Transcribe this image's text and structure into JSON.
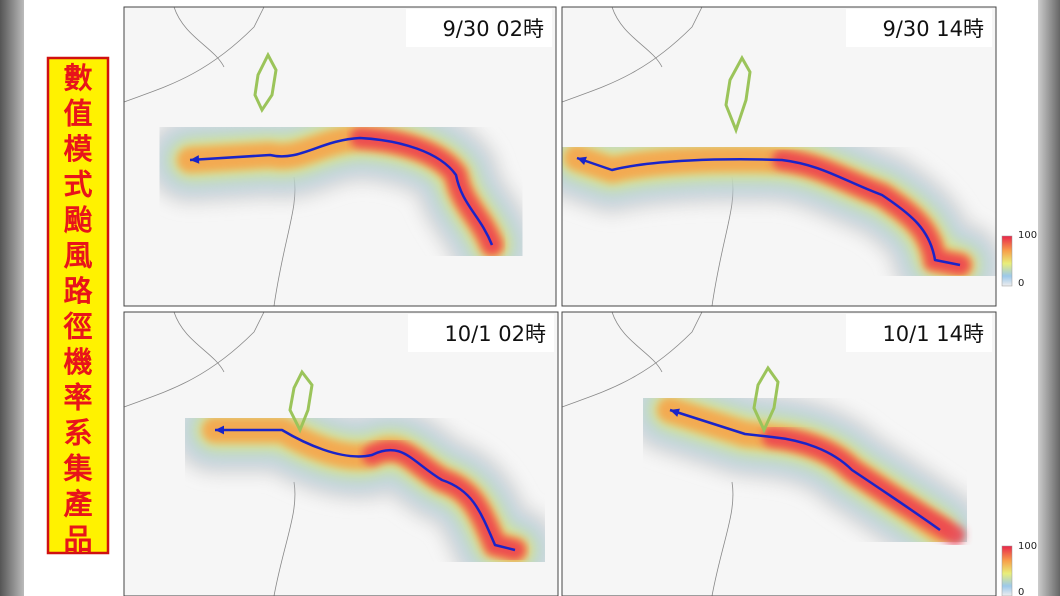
{
  "sidebar": {
    "title": "數值模式颱風路徑機率系集產品"
  },
  "panels": [
    {
      "label": "9/30 02時"
    },
    {
      "label": "9/30 14時"
    },
    {
      "label": "10/1 02時"
    },
    {
      "label": "10/1 14時"
    }
  ],
  "colorbars": [
    {
      "max": 100,
      "min": 0
    },
    {
      "max": 100,
      "min": 0
    }
  ]
}
